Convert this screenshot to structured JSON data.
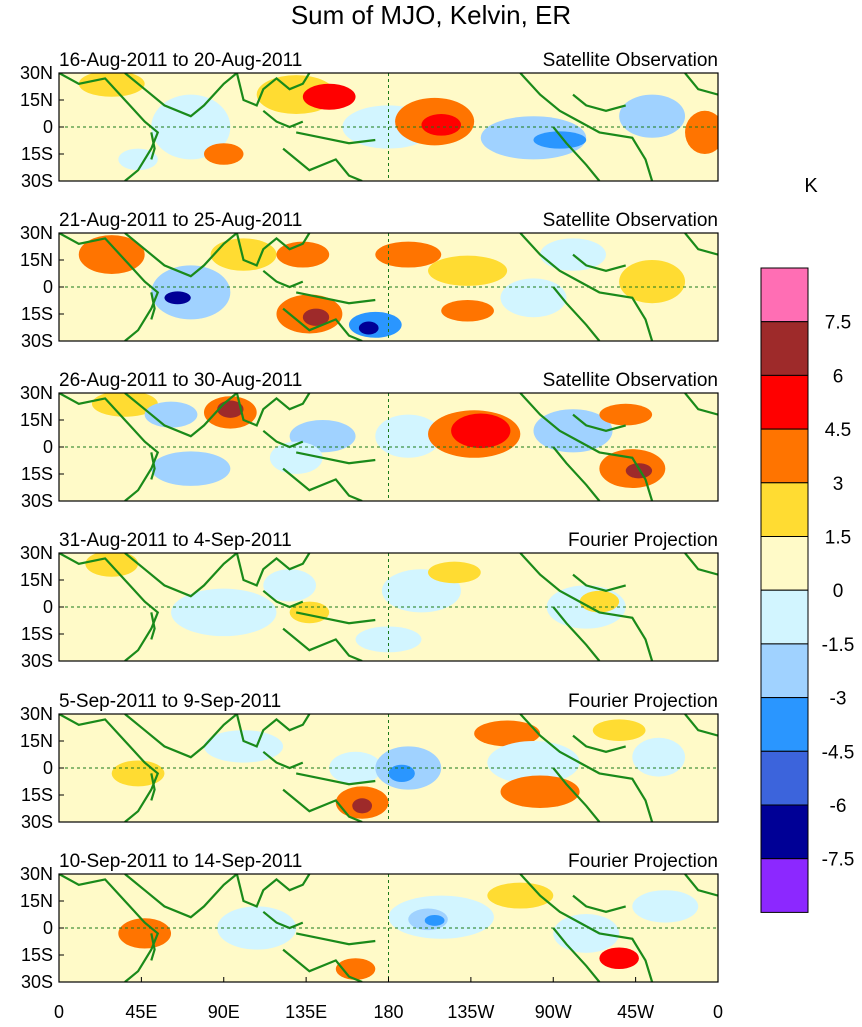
{
  "title": "Sum of MJO, Kelvin, ER",
  "lat_labels": [
    "30N",
    "15N",
    "0",
    "15S",
    "30S"
  ],
  "lon_labels": [
    "0",
    "45E",
    "90E",
    "135E",
    "180",
    "135W",
    "90W",
    "45W",
    "0"
  ],
  "panels": [
    {
      "date_range": "16-Aug-2011 to 20-Aug-2011",
      "source": "Satellite Observation"
    },
    {
      "date_range": "21-Aug-2011 to 25-Aug-2011",
      "source": "Satellite Observation"
    },
    {
      "date_range": "26-Aug-2011 to 30-Aug-2011",
      "source": "Satellite Observation"
    },
    {
      "date_range": "31-Aug-2011 to 4-Sep-2011",
      "source": "Fourier Projection"
    },
    {
      "date_range": "5-Sep-2011 to 9-Sep-2011",
      "source": "Fourier Projection"
    },
    {
      "date_range": "10-Sep-2011 to 14-Sep-2011",
      "source": "Fourier Projection"
    }
  ],
  "colorbar": {
    "unit": "K",
    "labels": [
      "7.5",
      "6",
      "4.5",
      "3",
      "1.5",
      "0",
      "-1.5",
      "-3",
      "-4.5",
      "-6",
      "-7.5"
    ],
    "colors": [
      "#ff6eb4",
      "#9e2a2a",
      "#ff0000",
      "#ff7400",
      "#ffdc32",
      "#fffac8",
      "#d2f5ff",
      "#a0d2ff",
      "#2a96ff",
      "#3c64dc",
      "#000096",
      "#8c28ff"
    ]
  }
}
